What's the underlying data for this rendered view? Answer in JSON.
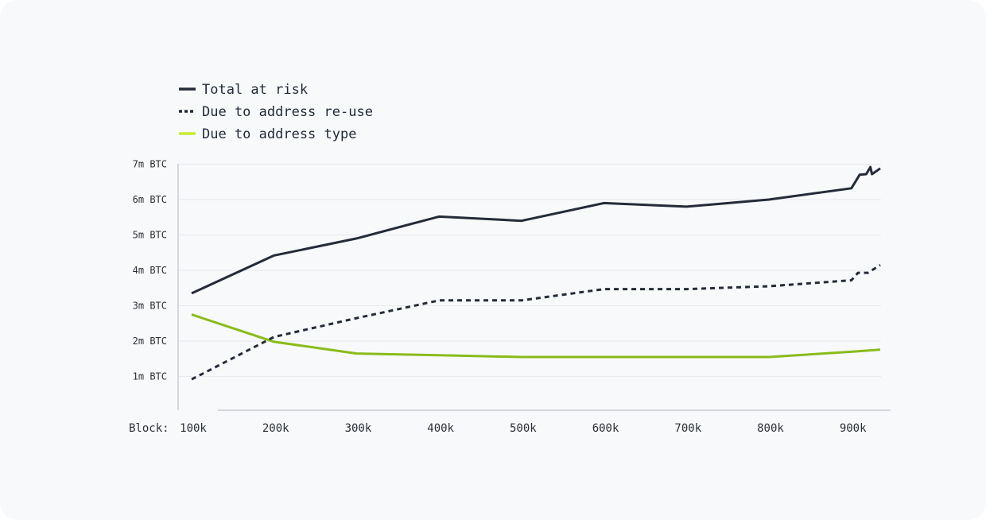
{
  "colors": {
    "total": "#242b38",
    "reuse": "#242b38",
    "type": "#8abb1b",
    "type_legend": "#c4ec35",
    "grid": "#e7e9ee",
    "axis": "#c7cbd2"
  },
  "chart_data": {
    "type": "line",
    "title": "",
    "xlabel": "Block:",
    "ylabel": "",
    "xlim": [
      90,
      935
    ],
    "ylim": [
      0,
      7
    ],
    "x_ticks": [
      {
        "value": 100,
        "label": "100k"
      },
      {
        "value": 200,
        "label": "200k"
      },
      {
        "value": 300,
        "label": "300k"
      },
      {
        "value": 400,
        "label": "400k"
      },
      {
        "value": 500,
        "label": "500k"
      },
      {
        "value": 600,
        "label": "600k"
      },
      {
        "value": 700,
        "label": "700k"
      },
      {
        "value": 800,
        "label": "800k"
      },
      {
        "value": 900,
        "label": "900k"
      }
    ],
    "y_ticks": [
      {
        "value": 1,
        "label": "1m BTC"
      },
      {
        "value": 2,
        "label": "2m BTC"
      },
      {
        "value": 3,
        "label": "3m BTC"
      },
      {
        "value": 4,
        "label": "4m BTC"
      },
      {
        "value": 5,
        "label": "5m BTC"
      },
      {
        "value": 6,
        "label": "6m BTC"
      },
      {
        "value": 7,
        "label": "7m BTC"
      }
    ],
    "grid": true,
    "legend_position": "top-left",
    "series": [
      {
        "name": "Total at risk",
        "style": "solid",
        "color": "#242b38",
        "points": [
          [
            100,
            3.35
          ],
          [
            200,
            4.42
          ],
          [
            300,
            4.9
          ],
          [
            400,
            5.52
          ],
          [
            500,
            5.4
          ],
          [
            600,
            5.9
          ],
          [
            700,
            5.8
          ],
          [
            800,
            6.0
          ],
          [
            900,
            6.32
          ],
          [
            910,
            6.7
          ],
          [
            918,
            6.72
          ],
          [
            923,
            6.92
          ],
          [
            925,
            6.72
          ],
          [
            935,
            6.88
          ]
        ]
      },
      {
        "name": "Due to address re-use",
        "style": "dashed",
        "color": "#242b38",
        "points": [
          [
            100,
            0.92
          ],
          [
            200,
            2.12
          ],
          [
            300,
            2.65
          ],
          [
            400,
            3.15
          ],
          [
            500,
            3.15
          ],
          [
            600,
            3.47
          ],
          [
            700,
            3.47
          ],
          [
            800,
            3.55
          ],
          [
            900,
            3.72
          ],
          [
            908,
            3.93
          ],
          [
            920,
            3.93
          ],
          [
            935,
            4.15
          ]
        ]
      },
      {
        "name": "Due to address type",
        "style": "solid",
        "color": "#8abb1b",
        "points": [
          [
            100,
            2.75
          ],
          [
            200,
            1.98
          ],
          [
            300,
            1.65
          ],
          [
            400,
            1.6
          ],
          [
            500,
            1.55
          ],
          [
            600,
            1.55
          ],
          [
            700,
            1.55
          ],
          [
            800,
            1.55
          ],
          [
            900,
            1.7
          ],
          [
            935,
            1.76
          ]
        ]
      }
    ]
  }
}
